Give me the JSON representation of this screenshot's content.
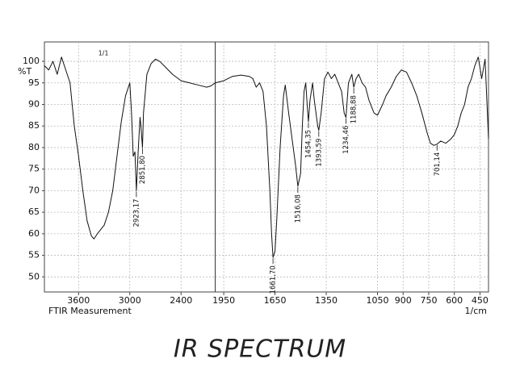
{
  "chart_data": {
    "type": "line",
    "title": "IR SPECTRUM",
    "subtitle": "1/1",
    "ylabel": "%T",
    "xlabel": "1/cm",
    "footer": "FTIR Measurement",
    "color": "#111111",
    "grid": true,
    "xlim": [
      4000,
      400
    ],
    "x_break": 2000,
    "xticks": [
      3600,
      3000,
      2400,
      1950,
      1650,
      1350,
      1050,
      900,
      750,
      600,
      450
    ],
    "ylim": [
      46.5,
      104.5
    ],
    "yticks": [
      50,
      55,
      60,
      65,
      70,
      75,
      80,
      85,
      90,
      95,
      100
    ],
    "x": [
      4000,
      3950,
      3900,
      3850,
      3800,
      3750,
      3700,
      3650,
      3600,
      3550,
      3500,
      3450,
      3420,
      3380,
      3300,
      3250,
      3200,
      3150,
      3100,
      3050,
      3000,
      2980,
      2960,
      2940,
      2923.17,
      2900,
      2880,
      2870,
      2851.8,
      2840,
      2800,
      2750,
      2700,
      2650,
      2600,
      2500,
      2400,
      2300,
      2200,
      2100,
      2050,
      2000,
      1950,
      1900,
      1850,
      1800,
      1780,
      1760,
      1740,
      1720,
      1700,
      1680,
      1670,
      1661.7,
      1650,
      1640,
      1620,
      1600,
      1590,
      1570,
      1550,
      1530,
      1516.08,
      1500,
      1490,
      1480,
      1470,
      1460,
      1454.35,
      1445,
      1430,
      1420,
      1400,
      1393.59,
      1380,
      1360,
      1340,
      1320,
      1300,
      1280,
      1260,
      1245,
      1234.46,
      1220,
      1200,
      1188.88,
      1175,
      1160,
      1140,
      1120,
      1100,
      1070,
      1050,
      1020,
      1000,
      970,
      940,
      910,
      880,
      850,
      820,
      790,
      760,
      740,
      720,
      701.14,
      680,
      650,
      620,
      600,
      580,
      560,
      540,
      520,
      500,
      480,
      460,
      440,
      420,
      400
    ],
    "values": [
      99,
      98,
      100,
      97,
      101,
      98,
      95,
      85,
      78,
      70,
      63,
      59.5,
      58.8,
      60,
      62,
      65,
      70,
      78,
      86,
      92,
      95,
      88,
      78,
      79,
      70,
      80,
      87,
      85,
      80,
      88,
      97,
      99.5,
      100.5,
      100,
      99,
      97,
      95.5,
      95,
      94.5,
      94,
      94.3,
      95,
      95.5,
      96.5,
      96.8,
      96.5,
      96,
      94,
      95,
      93,
      85,
      70,
      60,
      54.5,
      56,
      63,
      80,
      92,
      94.5,
      88,
      82,
      76,
      71,
      74,
      85,
      93,
      95,
      89,
      86,
      91,
      95,
      91,
      85,
      84,
      88,
      96,
      97.5,
      96,
      97,
      95,
      93,
      88,
      87,
      95,
      97,
      94,
      96,
      97,
      95,
      94,
      91,
      88,
      87.5,
      90,
      92,
      94,
      96.5,
      98,
      97.5,
      95,
      92,
      88,
      83.5,
      81,
      80.5,
      80.8,
      81.5,
      81,
      82,
      83,
      85,
      88,
      90,
      94,
      96,
      99,
      101,
      96,
      100.5,
      82
    ],
    "peaks": {
      "x": [
        2923.17,
        2851.8,
        1661.7,
        1516.08,
        1454.35,
        1393.59,
        1234.46,
        1188.88,
        701.14
      ],
      "y": [
        70,
        80,
        54.5,
        71,
        86,
        84,
        87,
        94,
        80.8
      ],
      "x_labels": [
        "2923,17",
        "2851,80",
        "1661,70",
        "1516,08",
        "1454,35",
        "1393,59",
        "1234,46",
        "1188,88",
        "701,14"
      ]
    }
  }
}
